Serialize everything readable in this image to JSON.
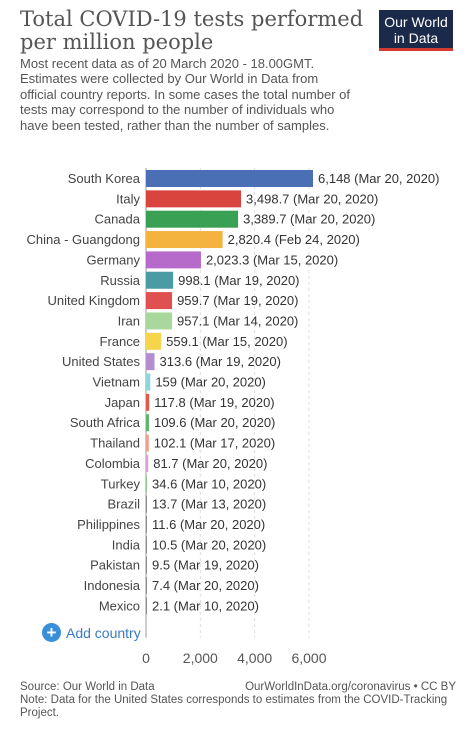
{
  "header": {
    "title": "Total COVID-19 tests performed per million people",
    "subtitle": "Most recent data as of 20 March 2020 - 18.00GMT. Estimates were collected by Our World in Data from official country reports. In some cases the total number of tests may correspond to the number of individuals who have been tested, rather than the number of samples.",
    "logo_line1": "Our World",
    "logo_line2": "in Data"
  },
  "controls": {
    "add_country": "Add country",
    "plus_icon": "+"
  },
  "footer": {
    "source": "Source: Our World in Data",
    "link": "OurWorldInData.org/coronavirus • CC BY",
    "note": "Note: Data for the United States corresponds to estimates from the COVID-Tracking Project."
  },
  "colors": {
    "South Korea": "#4a6fb5",
    "Italy": "#d9443f",
    "Canada": "#3aa154",
    "China - Guangdong": "#f4b33f",
    "Germany": "#b66ac9",
    "Russia": "#4a9ba3",
    "United Kingdom": "#e05050",
    "Iran": "#a9d89c",
    "France": "#f6d54a",
    "United States": "#b48cd0",
    "Vietnam": "#8fd6db",
    "Japan": "#e05a4a",
    "South Africa": "#5fb56b",
    "Thailand": "#f0a08a",
    "Colombia": "#d7a3d9",
    "Turkey": "#8fc98f"
  },
  "chart_data": {
    "type": "bar",
    "orientation": "horizontal",
    "categories": [
      "South Korea",
      "Italy",
      "Canada",
      "China - Guangdong",
      "Germany",
      "Russia",
      "United Kingdom",
      "Iran",
      "France",
      "United States",
      "Vietnam",
      "Japan",
      "South Africa",
      "Thailand",
      "Colombia",
      "Turkey",
      "Brazil",
      "Philippines",
      "India",
      "Pakistan",
      "Indonesia",
      "Mexico"
    ],
    "values": [
      6148,
      3498.7,
      3389.7,
      2820.4,
      2023.3,
      998.1,
      959.7,
      957.1,
      559.1,
      313.6,
      159,
      117.8,
      109.6,
      102.1,
      81.7,
      34.6,
      13.7,
      11.6,
      10.5,
      9.5,
      7.4,
      2.1
    ],
    "labels": [
      "6,148 (Mar 20, 2020)",
      "3,498.7 (Mar 20, 2020)",
      "3,389.7 (Mar 20, 2020)",
      "2,820.4 (Feb 24, 2020)",
      "2,023.3 (Mar 15, 2020)",
      "998.1 (Mar 19, 2020)",
      "959.7 (Mar 19, 2020)",
      "957.1 (Mar 14, 2020)",
      "559.1 (Mar 15, 2020)",
      "313.6 (Mar 19, 2020)",
      "159 (Mar 20, 2020)",
      "117.8 (Mar 19, 2020)",
      "109.6 (Mar 20, 2020)",
      "102.1 (Mar 17, 2020)",
      "81.7 (Mar 20, 2020)",
      "34.6 (Mar 10, 2020)",
      "13.7 (Mar 13, 2020)",
      "11.6 (Mar 20, 2020)",
      "10.5 (Mar 20, 2020)",
      "9.5 (Mar 19, 2020)",
      "7.4 (Mar 20, 2020)",
      "2.1 (Mar 10, 2020)"
    ],
    "xticks": [
      0,
      2000,
      4000,
      6000
    ],
    "xtick_labels": [
      "0",
      "2,000",
      "4,000",
      "6,000"
    ],
    "xlim": [
      0,
      6148
    ],
    "grid": "vertical dashed"
  }
}
